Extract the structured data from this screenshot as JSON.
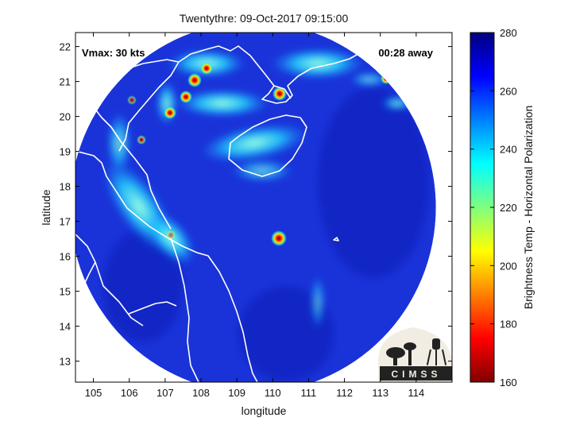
{
  "figure": {
    "title": "Twentythre: 09-Oct-2017 09:15:00",
    "xlabel": "longitude",
    "ylabel": "latitude",
    "vmax_text": "Vmax: 30 kts",
    "time_offset_text": "00:28 away",
    "logo_text": "CIMSS"
  },
  "map": {
    "lon_range": [
      104.5,
      115
    ],
    "lat_range": [
      12.4,
      22.4
    ],
    "lon_ticks": [
      105,
      106,
      107,
      108,
      109,
      110,
      111,
      112,
      113,
      114
    ],
    "lat_ticks": [
      13,
      14,
      15,
      16,
      17,
      18,
      19,
      20,
      21,
      22
    ],
    "swath_center": [
      109.45,
      17.4
    ],
    "swath_radius_lon": 5.1,
    "swath_radius_lat": 5.3,
    "storm_center": [
      110.05,
      16.5
    ]
  },
  "colorbar": {
    "label": "Brightness Temp - Horizontal Polarization",
    "range": [
      160,
      280
    ],
    "ticks": [
      160,
      180,
      200,
      220,
      240,
      260,
      280
    ]
  },
  "colors": {
    "background_tb": "#1a33d8",
    "coast": "#ffffff",
    "frame": "#000000"
  }
}
